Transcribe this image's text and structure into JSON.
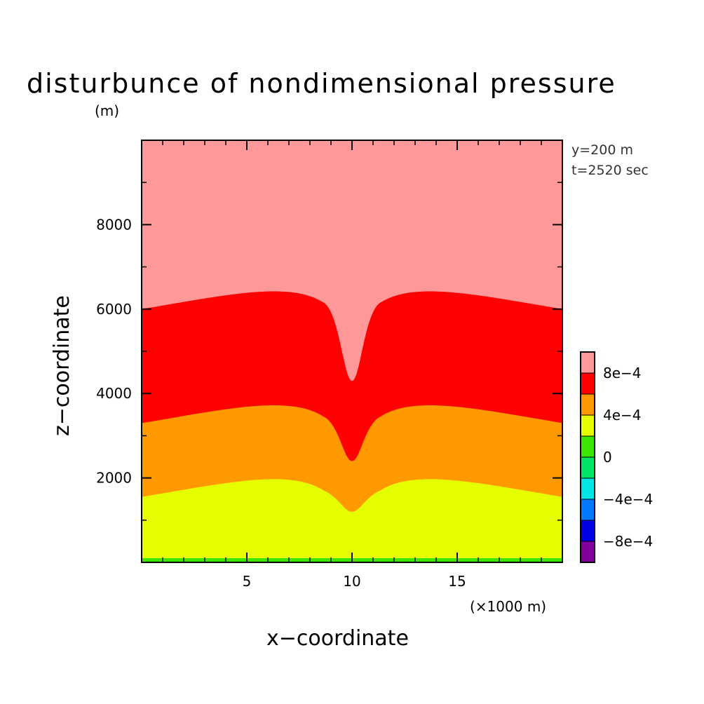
{
  "chart_data": {
    "type": "contour",
    "title": "disturbunce of nondimensional pressure",
    "y_unit_label": "(m)",
    "x_unit_label": "(×1000 m)",
    "xlabel": "x−coordinate",
    "ylabel": "z−coordinate",
    "info_lines": [
      "y=200 m",
      "t=2520 sec"
    ],
    "xlim": [
      0,
      20
    ],
    "ylim": [
      0,
      10000
    ],
    "x_ticks": [
      {
        "value": 5,
        "label": "5"
      },
      {
        "value": 10,
        "label": "10"
      },
      {
        "value": 15,
        "label": "15"
      }
    ],
    "x_minor": [
      1,
      2,
      3,
      4,
      6,
      7,
      8,
      9,
      11,
      12,
      13,
      14,
      16,
      17,
      18,
      19
    ],
    "y_ticks": [
      {
        "value": 2000,
        "label": "2000"
      },
      {
        "value": 4000,
        "label": "4000"
      },
      {
        "value": 6000,
        "label": "6000"
      },
      {
        "value": 8000,
        "label": "8000"
      }
    ],
    "y_minor": [
      1000,
      3000,
      5000,
      7000,
      9000
    ],
    "colorbar": {
      "colors": [
        "#8000a0",
        "#0000e6",
        "#0078ff",
        "#00e6e6",
        "#00e664",
        "#3ce600",
        "#e6ff00",
        "#ff9900",
        "#ff0000",
        "#ff9999"
      ],
      "ticks": [
        {
          "label": "8e−4",
          "boundary": 9
        },
        {
          "label": "4e−4",
          "boundary": 7
        },
        {
          "label": "0",
          "boundary": 5
        },
        {
          "label": "−4e−4",
          "boundary": 3
        },
        {
          "label": "−8e−4",
          "boundary": 1
        }
      ]
    },
    "bands": [
      {
        "color": "#3ce600",
        "left_edge": 100,
        "center_edge": 100,
        "right_edge": 100
      },
      {
        "color": "#e6ff00",
        "left_edge": 1550,
        "center_edge": 1200,
        "right_edge": 1550
      },
      {
        "color": "#ff9900",
        "left_edge": 3300,
        "center_edge": 2400,
        "right_edge": 3300
      },
      {
        "color": "#ff0000",
        "left_edge": 6000,
        "center_edge": 4300,
        "right_edge": 6000
      },
      {
        "color": "#ff9999",
        "left_edge": 10000,
        "center_edge": 10000,
        "right_edge": 10000
      }
    ]
  }
}
